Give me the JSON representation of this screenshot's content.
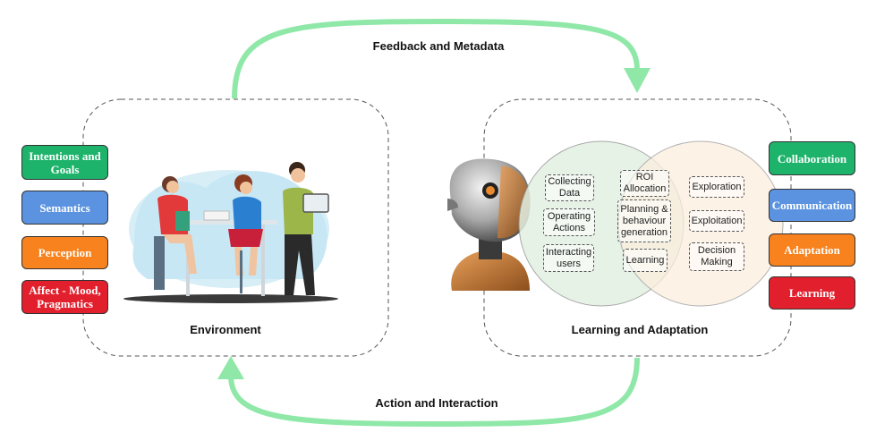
{
  "arrows": {
    "top_label": "Feedback and Metadata",
    "bottom_label": "Action and Interaction",
    "color": "#8fe8a8"
  },
  "environment": {
    "label": "Environment",
    "inputs": [
      {
        "text": "Intentions and Goals",
        "color": "#1db36b"
      },
      {
        "text": "Semantics",
        "color": "#5b93e0"
      },
      {
        "text": "Perception",
        "color": "#f7821e"
      },
      {
        "text": "Affect - Mood, Pragmatics",
        "color": "#e21f2c"
      }
    ]
  },
  "learning": {
    "label": "Learning and Adaptation",
    "left_circle_items": [
      "Collecting Data",
      "Operating Actions",
      "Interacting users"
    ],
    "overlap_items": [
      "ROI Allocation",
      "Planning & behaviour generation",
      "Learning"
    ],
    "right_circle_items": [
      "Exploration",
      "Exploitation",
      "Decision Making"
    ],
    "outputs": [
      {
        "text": "Collaboration",
        "color": "#1db36b"
      },
      {
        "text": "Communication",
        "color": "#5b93e0"
      },
      {
        "text": "Adaptation",
        "color": "#f7821e"
      },
      {
        "text": "Learning",
        "color": "#e21f2c"
      }
    ],
    "circle_colors": {
      "left": "#e3f0e3",
      "right": "#fbeede"
    }
  }
}
